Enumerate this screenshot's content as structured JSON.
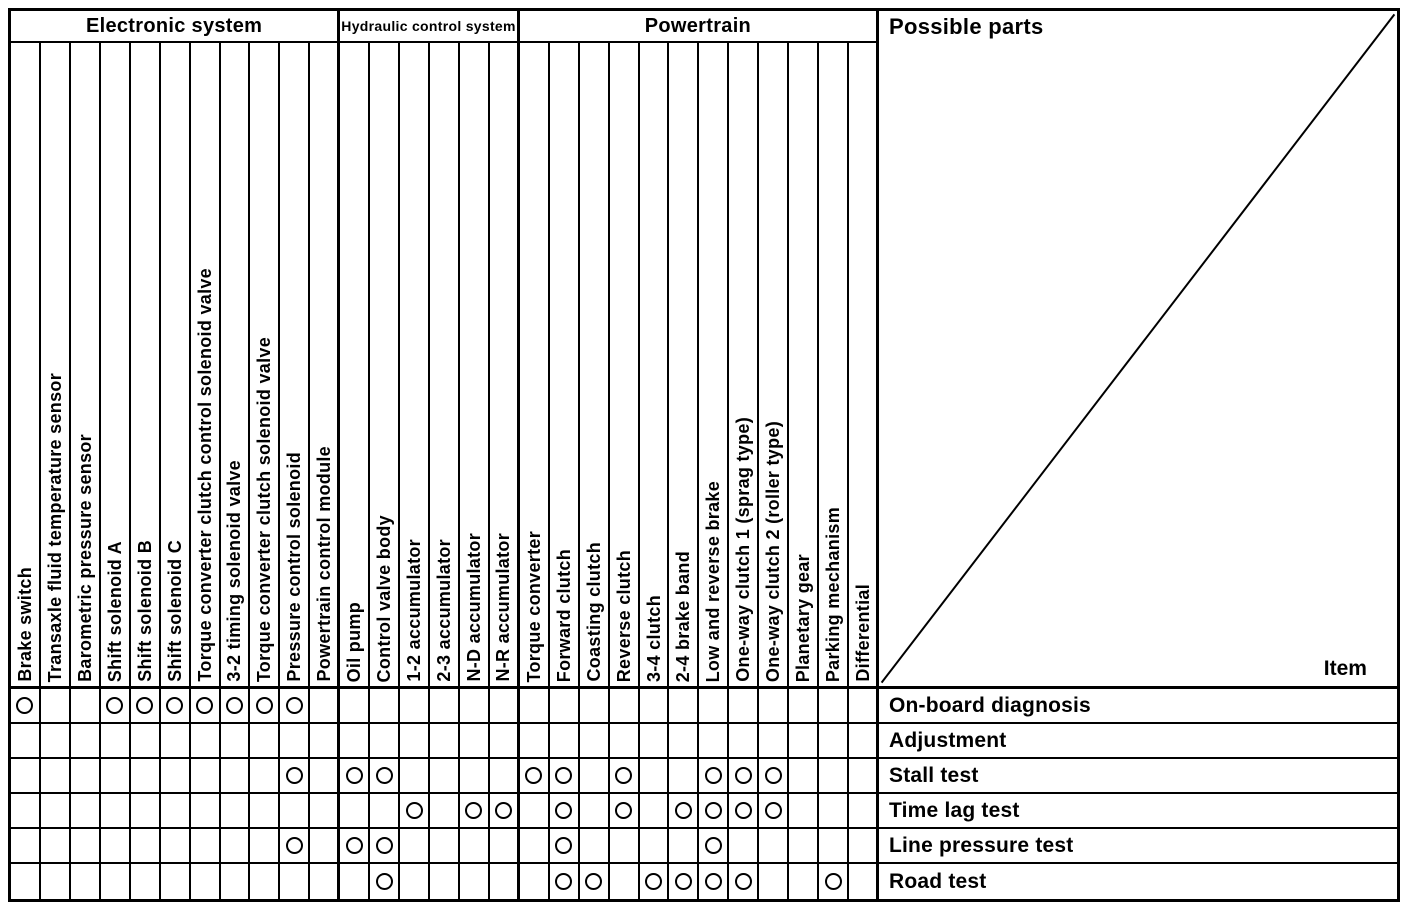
{
  "corner": {
    "parts_axis_label": "Possible parts",
    "item_axis_label": "Item"
  },
  "groups": [
    {
      "label": "Electronic system",
      "span": 11
    },
    {
      "label": "Hydraulic control system",
      "span": 6
    },
    {
      "label": "Powertrain",
      "span": 12
    }
  ],
  "parts": [
    "Brake switch",
    "Transaxle fluid temperature sensor",
    "Barometric pressure sensor",
    "Shift solenoid A",
    "Shift solenoid B",
    "Shift solenoid C",
    "Torque converter clutch control solenoid valve",
    "3-2 timing solenoid valve",
    "Torque converter clutch solenoid valve",
    "Pressure control solenoid",
    "Powertrain control module",
    "Oil pump",
    "Control valve body",
    "1-2 accumulator",
    "2-3 accumulator",
    "N-D accumulator",
    "N-R accumulator",
    "Torque converter",
    "Forward clutch",
    "Coasting clutch",
    "Reverse clutch",
    "3-4 clutch",
    "2-4 brake band",
    "Low and reverse brake",
    "One-way clutch 1 (sprag type)",
    "One-way clutch 2 (roller type)",
    "Planetary gear",
    "Parking mechanism",
    "Differential"
  ],
  "items": [
    {
      "label": "On-board diagnosis",
      "marks": [
        1,
        4,
        5,
        6,
        7,
        8,
        9,
        10
      ]
    },
    {
      "label": "Adjustment",
      "marks": []
    },
    {
      "label": "Stall test",
      "marks": [
        10,
        12,
        13,
        18,
        19,
        21,
        24,
        25,
        26
      ]
    },
    {
      "label": "Time lag test",
      "marks": [
        14,
        16,
        17,
        19,
        21,
        23,
        24,
        25,
        26
      ]
    },
    {
      "label": "Line pressure test",
      "marks": [
        10,
        12,
        13,
        19,
        24
      ]
    },
    {
      "label": "Road test",
      "marks": [
        13,
        19,
        20,
        22,
        23,
        24,
        25,
        28
      ]
    }
  ],
  "mark_glyph": "circle",
  "colors": {
    "ink": "#000000",
    "paper": "#ffffff"
  }
}
